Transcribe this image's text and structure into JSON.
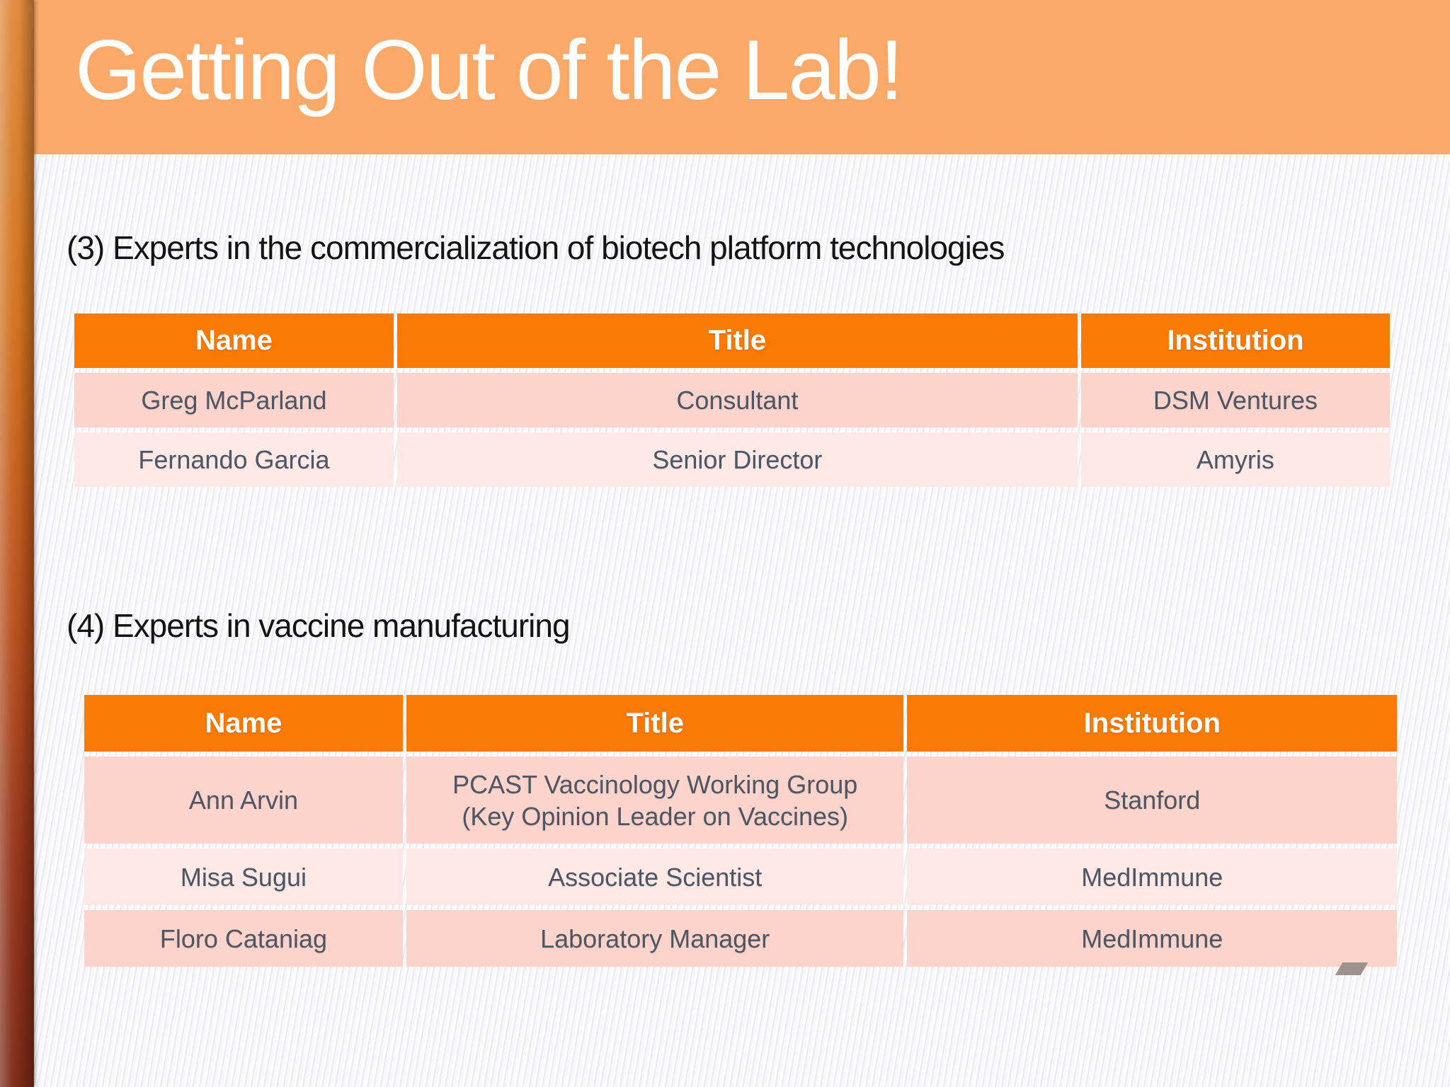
{
  "slide": {
    "title": "Getting Out of the Lab!"
  },
  "colors": {
    "background": "#F5F4F6",
    "banner_bg": "#FAA968",
    "title_text": "#FFFFFF",
    "table_header_bg": "#F97A07",
    "row_dark": "#FDD4CB",
    "row_light": "#FEE9E6",
    "cell_text": "#4D5665",
    "strip_top": "#E08A3E",
    "strip_bottom": "#7C2A17",
    "corner_shape": "#9C938D"
  },
  "sections": [
    {
      "heading": "(3) Experts in the commercialization of biotech platform technologies",
      "table": {
        "columns": [
          "Name",
          "Title",
          "Institution"
        ],
        "rows": [
          [
            "Greg McParland",
            "Consultant",
            "DSM Ventures"
          ],
          [
            "Fernando Garcia",
            "Senior Director",
            "Amyris"
          ]
        ]
      }
    },
    {
      "heading": "(4) Experts in vaccine manufacturing",
      "table": {
        "columns": [
          "Name",
          "Title",
          "Institution"
        ],
        "rows": [
          [
            "Ann Arvin",
            "PCAST Vaccinology Working Group\n(Key Opinion Leader on Vaccines)",
            "Stanford"
          ],
          [
            "Misa Sugui",
            "Associate Scientist",
            "MedImmune"
          ],
          [
            "Floro Cataniag",
            "Laboratory Manager",
            "MedImmune"
          ]
        ]
      }
    }
  ]
}
